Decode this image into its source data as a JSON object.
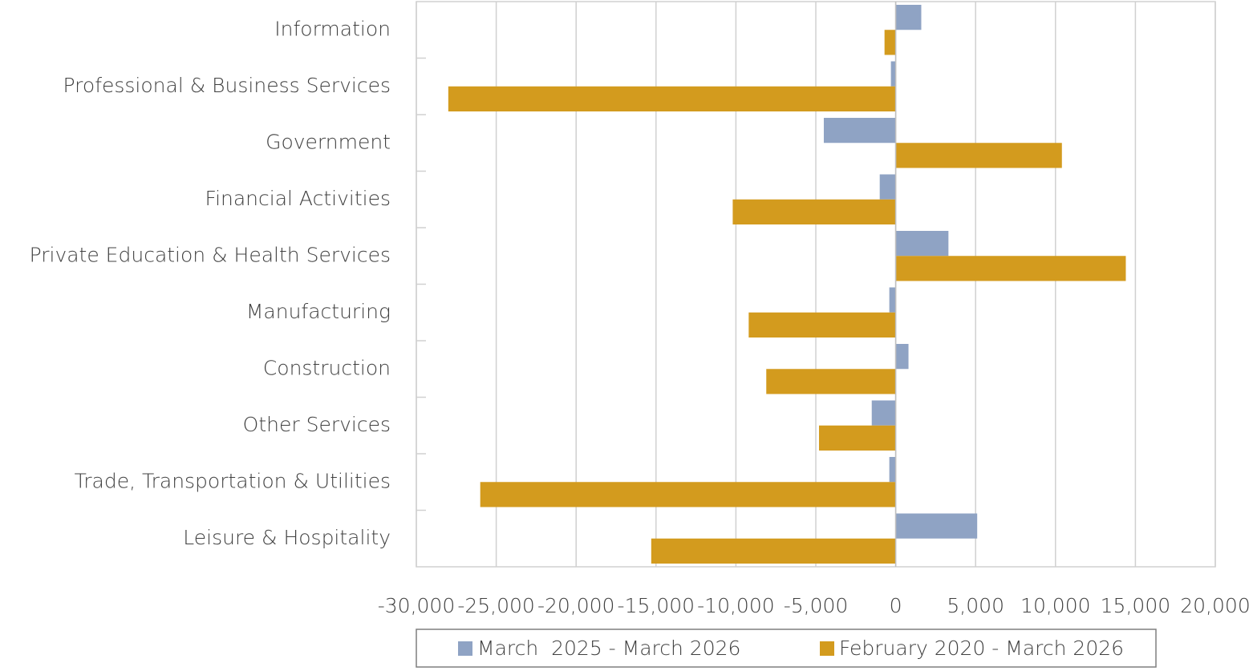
{
  "chart_data": {
    "type": "barh",
    "categories": [
      "Information",
      "Professional & Business Services",
      "Government",
      "Financial Activities",
      "Private Education & Health Services",
      "Manufacturing",
      "Construction",
      "Other Services",
      "Trade, Transportation & Utilities",
      "Leisure & Hospitality"
    ],
    "series": [
      {
        "name": "March  2025 - March 2026",
        "color": "#8fa3c4",
        "values": [
          1600,
          -300,
          -4500,
          -1000,
          3300,
          -400,
          800,
          -1500,
          -400,
          5100
        ]
      },
      {
        "name": "February 2020 - March 2026",
        "color": "#d39b1e",
        "values": [
          -700,
          -28000,
          10400,
          -10200,
          14400,
          -9200,
          -8100,
          -4800,
          -26000,
          -15300
        ]
      }
    ],
    "xlim": [
      -30000,
      20000
    ],
    "xticks": [
      {
        "value": -30000,
        "label": "-30,000"
      },
      {
        "value": -25000,
        "label": "-25,000"
      },
      {
        "value": -20000,
        "label": "-20,000"
      },
      {
        "value": -15000,
        "label": "-15,000"
      },
      {
        "value": -10000,
        "label": "-10,000"
      },
      {
        "value": -5000,
        "label": "-5,000"
      },
      0,
      {
        "value": 5000,
        "label": "5,000"
      },
      {
        "value": 10000,
        "label": "10,000"
      },
      {
        "value": 15000,
        "label": "15,000"
      },
      {
        "value": 20000,
        "label": "20,000"
      }
    ],
    "grid": true,
    "legend": "bottom"
  }
}
